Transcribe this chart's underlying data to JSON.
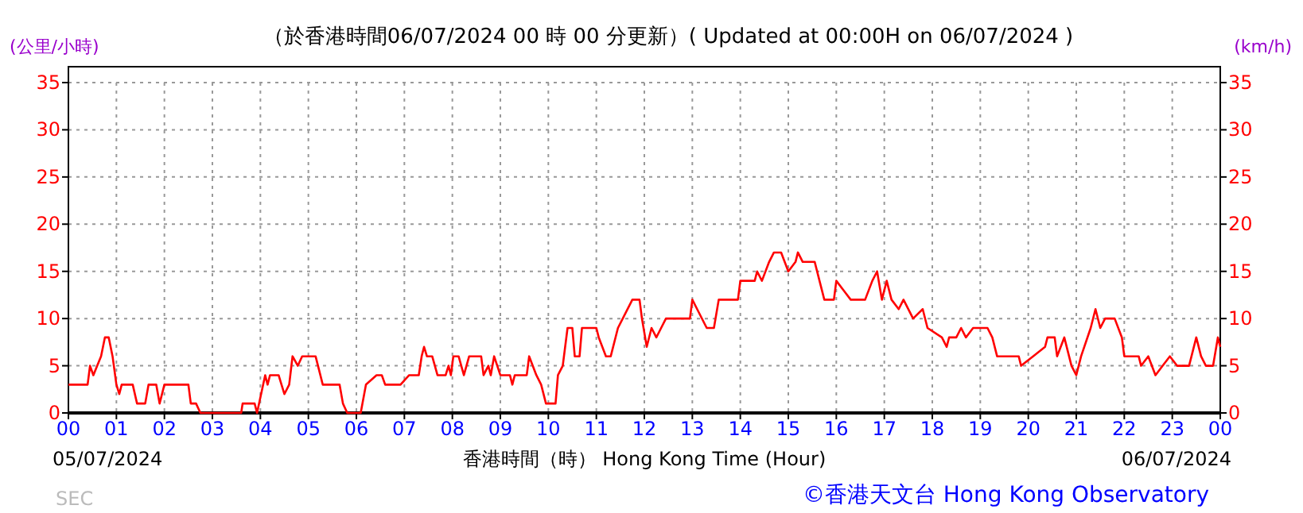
{
  "chart_data": {
    "type": "line",
    "title": "（於香港時間06/07/2024 00 時 00 分更新）( Updated at 00:00H on 06/07/2024 )",
    "xlabel": "香港時間（時） Hong Kong Time (Hour)",
    "ylabel": "(公里/小時)",
    "y2label": "(km/h)",
    "xlim": [
      0,
      24
    ],
    "xticks": [
      {
        "value": 0,
        "label": "00"
      },
      {
        "value": 1,
        "label": "01"
      },
      {
        "value": 2,
        "label": "02"
      },
      {
        "value": 3,
        "label": "03"
      },
      {
        "value": 4,
        "label": "04"
      },
      {
        "value": 5,
        "label": "05"
      },
      {
        "value": 6,
        "label": "06"
      },
      {
        "value": 7,
        "label": "07"
      },
      {
        "value": 8,
        "label": "08"
      },
      {
        "value": 9,
        "label": "09"
      },
      {
        "value": 10,
        "label": "10"
      },
      {
        "value": 11,
        "label": "11"
      },
      {
        "value": 12,
        "label": "12"
      },
      {
        "value": 13,
        "label": "13"
      },
      {
        "value": 14,
        "label": "14"
      },
      {
        "value": 15,
        "label": "15"
      },
      {
        "value": 16,
        "label": "16"
      },
      {
        "value": 17,
        "label": "17"
      },
      {
        "value": 18,
        "label": "18"
      },
      {
        "value": 19,
        "label": "19"
      },
      {
        "value": 20,
        "label": "20"
      },
      {
        "value": 21,
        "label": "21"
      },
      {
        "value": 22,
        "label": "22"
      },
      {
        "value": 23,
        "label": "23"
      },
      {
        "value": 24,
        "label": "00"
      }
    ],
    "ylim": [
      0,
      35
    ],
    "yticks": [
      0,
      5,
      10,
      15,
      20,
      25,
      30,
      35
    ],
    "y2lim": [
      0,
      35
    ],
    "y2ticks": [
      0,
      5,
      10,
      15,
      20,
      25,
      30,
      35
    ],
    "grid": true,
    "annotations": [
      "05/07/2024",
      "06/07/2024",
      "SEC",
      "©香港天文台 Hong Kong Observatory"
    ],
    "series": [
      {
        "color": "#ff0000",
        "x": [
          0,
          0.07,
          0.4,
          0.45,
          0.52,
          0.6,
          0.68,
          0.76,
          0.84,
          0.92,
          1.0,
          1.06,
          1.11,
          1.34,
          1.43,
          1.6,
          1.67,
          1.83,
          1.9,
          2.0,
          2.5,
          2.55,
          2.66,
          2.75,
          3.6,
          3.63,
          3.88,
          3.93,
          4.1,
          4.15,
          4.2,
          4.38,
          4.44,
          4.5,
          4.6,
          4.67,
          4.78,
          4.87,
          4.93,
          5.15,
          5.3,
          5.65,
          5.72,
          5.81,
          6.09,
          6.2,
          6.42,
          6.53,
          6.6,
          6.92,
          7.1,
          7.3,
          7.36,
          7.41,
          7.47,
          7.58,
          7.69,
          7.86,
          7.92,
          7.97,
          8.02,
          8.13,
          8.24,
          8.35,
          8.6,
          8.65,
          8.75,
          8.8,
          8.87,
          9.0,
          9.2,
          9.25,
          9.3,
          9.55,
          9.6,
          9.75,
          9.85,
          9.95,
          10.15,
          10.2,
          10.3,
          10.4,
          10.5,
          10.55,
          10.65,
          10.7,
          11.0,
          11.05,
          11.2,
          11.3,
          11.45,
          11.55,
          11.75,
          11.9,
          11.95,
          12.05,
          12.15,
          12.25,
          12.35,
          12.45,
          12.95,
          13.0,
          13.1,
          13.3,
          13.45,
          13.55,
          13.95,
          14.0,
          14.3,
          14.35,
          14.45,
          14.6,
          14.7,
          14.85,
          15.0,
          15.15,
          15.2,
          15.3,
          15.55,
          15.65,
          15.75,
          15.95,
          16.0,
          16.15,
          16.3,
          16.6,
          16.75,
          16.85,
          16.95,
          17.05,
          17.15,
          17.3,
          17.4,
          17.6,
          17.8,
          17.9,
          18.2,
          18.3,
          18.35,
          18.5,
          18.6,
          18.7,
          18.85,
          19.15,
          19.25,
          19.35,
          19.8,
          19.85,
          20.1,
          20.35,
          20.4,
          20.55,
          20.6,
          20.75,
          20.9,
          21.0,
          21.1,
          21.3,
          21.4,
          21.5,
          21.6,
          21.8,
          21.95,
          22.0,
          22.3,
          22.35,
          22.5,
          22.65,
          22.8,
          22.95,
          23.1,
          23.35,
          23.5,
          23.6,
          23.7,
          23.85,
          23.95,
          24.0
        ],
        "values": [
          3,
          3,
          3,
          5,
          4,
          5,
          6,
          8,
          8,
          6,
          3,
          2,
          3,
          3,
          1,
          1,
          3,
          3,
          1,
          3,
          3,
          1,
          1,
          0,
          0,
          1,
          1,
          0,
          4,
          3,
          4,
          4,
          3,
          2,
          3,
          6,
          5,
          6,
          6,
          6,
          3,
          3,
          1,
          0,
          0,
          3,
          4,
          4,
          3,
          3,
          4,
          4,
          6,
          7,
          6,
          6,
          4,
          4,
          5,
          4,
          6,
          6,
          4,
          6,
          6,
          4,
          5,
          4,
          6,
          4,
          4,
          3,
          4,
          4,
          6,
          4,
          3,
          1,
          1,
          4,
          5,
          9,
          9,
          6,
          6,
          9,
          9,
          8,
          6,
          6,
          9,
          10,
          12,
          12,
          10,
          7,
          9,
          8,
          9,
          10,
          10,
          12,
          11,
          9,
          9,
          12,
          12,
          14,
          14,
          15,
          14,
          16,
          17,
          17,
          15,
          16,
          17,
          16,
          16,
          14,
          12,
          12,
          14,
          13,
          12,
          12,
          14,
          15,
          12,
          14,
          12,
          11,
          12,
          10,
          11,
          9,
          8,
          7,
          8,
          8,
          9,
          8,
          9,
          9,
          8,
          6,
          6,
          5,
          6,
          7,
          8,
          8,
          6,
          8,
          5,
          4,
          6,
          9,
          11,
          9,
          10,
          10,
          8,
          6,
          6,
          5,
          6,
          4,
          5,
          6,
          5,
          5,
          8,
          6,
          5,
          5,
          8,
          7
        ]
      }
    ]
  }
}
